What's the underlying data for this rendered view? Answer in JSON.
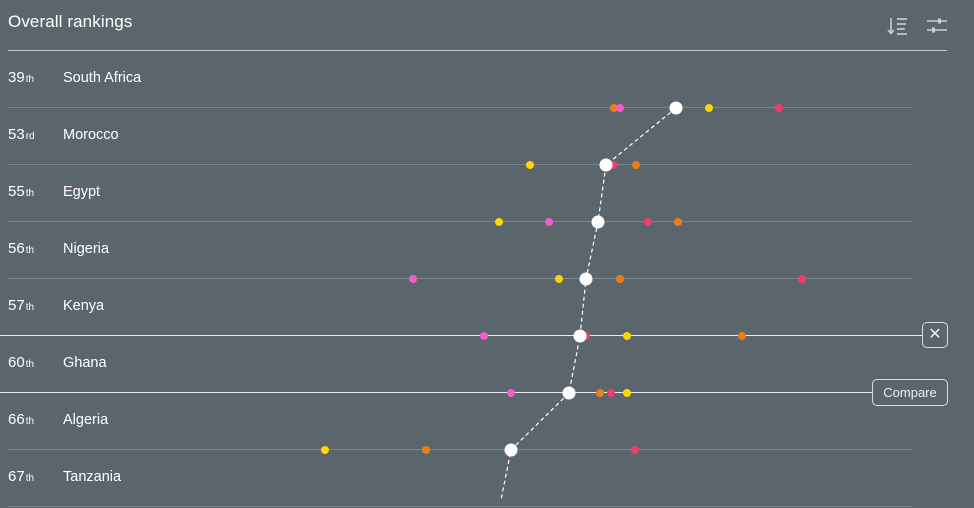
{
  "header": {
    "title": "Overall rankings",
    "sort_icon": "sort-lines-icon",
    "filter_icon": "sliders-icon"
  },
  "colors": {
    "background": "#5b656c",
    "yellow": "#ffd500",
    "orange": "#f07d12",
    "pink": "#f25ccb",
    "red": "#f23d6b",
    "overall": "#ffffff"
  },
  "rows": [
    {
      "rank_num": "39",
      "rank_suffix": "th",
      "country": "South Africa"
    },
    {
      "rank_num": "53",
      "rank_suffix": "rd",
      "country": "Morocco"
    },
    {
      "rank_num": "55",
      "rank_suffix": "th",
      "country": "Egypt"
    },
    {
      "rank_num": "56",
      "rank_suffix": "th",
      "country": "Nigeria"
    },
    {
      "rank_num": "57",
      "rank_suffix": "th",
      "country": "Kenya"
    },
    {
      "rank_num": "60",
      "rank_suffix": "th",
      "country": "Ghana"
    },
    {
      "rank_num": "66",
      "rank_suffix": "th",
      "country": "Algeria"
    },
    {
      "rank_num": "67",
      "rank_suffix": "th",
      "country": "Tanzania"
    }
  ],
  "actions": {
    "close_label": "✕",
    "compare_label": "Compare"
  }
}
